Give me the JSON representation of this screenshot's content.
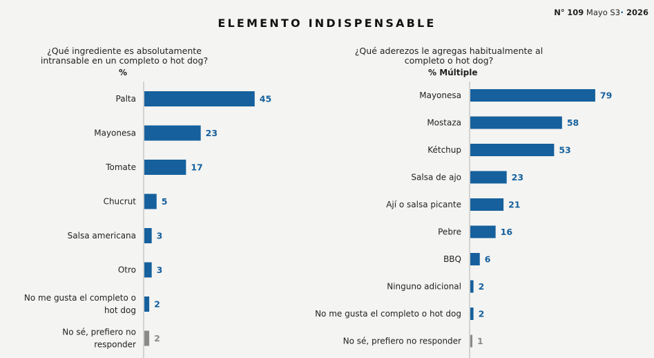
{
  "header": {
    "title": "ELEMENTO INDISPENSABLE",
    "issue_prefix": "N°",
    "issue_number": "109",
    "issue_month": "Mayo S3",
    "issue_bullet": "•",
    "issue_year": "2026"
  },
  "colors": {
    "bar": "#15609d",
    "bar_muted": "#8a8a8a",
    "value_label": "#15609d",
    "value_label_muted": "#8a8a8a"
  },
  "chart_data": [
    {
      "type": "bar",
      "orientation": "horizontal",
      "question_line1": "¿Qué ingrediente es absolutamente",
      "question_line2": "intransable en un completo o hot dog?",
      "unit": "%",
      "categories": [
        "Palta",
        "Mayonesa",
        "Tomate",
        "Chucrut",
        "Salsa americana",
        "Otro",
        "No me gusta el completo o hot dog",
        "No sé, prefiero no responder"
      ],
      "values": [
        45,
        23,
        17,
        5,
        3,
        3,
        2,
        2
      ]
    },
    {
      "type": "bar",
      "orientation": "horizontal",
      "question_line1": "¿Qué aderezos le agregas habitualmente al",
      "question_line2": "completo o hot dog?",
      "unit": "% Múltiple",
      "categories": [
        "Mayonesa",
        "Mostaza",
        "Kétchup",
        "Salsa de ajo",
        "Ají o salsa picante",
        "Pebre",
        "BBQ",
        "Ninguno adicional",
        "No me gusta el completo o hot dog",
        "No sé, prefiero no responder"
      ],
      "values": [
        79,
        58,
        53,
        23,
        21,
        16,
        6,
        2,
        2,
        1
      ]
    }
  ]
}
